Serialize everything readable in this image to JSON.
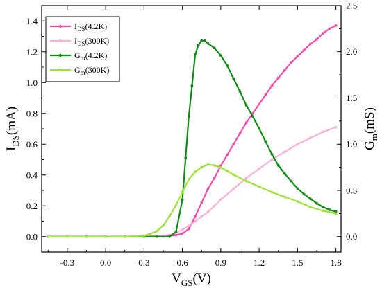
{
  "chart_data": {
    "type": "line",
    "xlabel": {
      "main": "V",
      "sub": "GS",
      "rest": "(V)"
    },
    "ylabel_left": {
      "main": "I",
      "sub": "DS",
      "rest": "(mA)"
    },
    "ylabel_right": {
      "main": "G",
      "sub": "m",
      "rest": "(mS)"
    },
    "xlim": [
      -0.5,
      1.84
    ],
    "ylim_left": [
      -0.1,
      1.5
    ],
    "ylim_right": [
      -0.1667,
      2.5
    ],
    "xticks": [
      -0.3,
      0.0,
      0.3,
      0.6,
      0.9,
      1.2,
      1.5,
      1.8
    ],
    "xtick_labels": [
      "-0.3",
      "0.0",
      "0.3",
      "0.6",
      "0.9",
      "1.2",
      "1.5",
      "1.8"
    ],
    "yticks_left": [
      0.0,
      0.2,
      0.4,
      0.6,
      0.8,
      1.0,
      1.2,
      1.4
    ],
    "ytick_labels_left": [
      "0.0",
      "0.2",
      "0.4",
      "0.6",
      "0.8",
      "1.0",
      "1.2",
      "1.4"
    ],
    "yticks_right": [
      0.0,
      0.5,
      1.0,
      1.5,
      2.0,
      2.5
    ],
    "ytick_labels_right": [
      "0.0",
      "0.5",
      "1.0",
      "1.5",
      "2.0",
      "2.5"
    ],
    "legend_position": "top-left",
    "grid": false,
    "series": [
      {
        "name": {
          "main": "I",
          "sub": "DS",
          "rest": "(4.2K)"
        },
        "axis": "left",
        "color": "#ee4fa8",
        "x": [
          -0.45,
          -0.3,
          -0.15,
          0.0,
          0.15,
          0.3,
          0.45,
          0.55,
          0.6,
          0.65,
          0.7,
          0.75,
          0.8,
          0.85,
          0.9,
          0.95,
          1.0,
          1.05,
          1.1,
          1.15,
          1.2,
          1.25,
          1.3,
          1.35,
          1.4,
          1.45,
          1.5,
          1.55,
          1.6,
          1.65,
          1.7,
          1.75,
          1.8
        ],
        "y": [
          0.0,
          0.0,
          0.0,
          0.0,
          0.0,
          0.0,
          0.0,
          0.01,
          0.02,
          0.05,
          0.13,
          0.22,
          0.31,
          0.38,
          0.46,
          0.53,
          0.6,
          0.67,
          0.74,
          0.8,
          0.86,
          0.92,
          0.98,
          1.03,
          1.08,
          1.13,
          1.17,
          1.21,
          1.25,
          1.28,
          1.32,
          1.35,
          1.37
        ]
      },
      {
        "name": {
          "main": "I",
          "sub": "DS",
          "rest": "(300K)"
        },
        "axis": "left",
        "color": "#f6b3d6",
        "x": [
          -0.45,
          -0.3,
          -0.15,
          0.0,
          0.15,
          0.3,
          0.4,
          0.5,
          0.55,
          0.6,
          0.65,
          0.7,
          0.75,
          0.8,
          0.85,
          0.9,
          1.0,
          1.1,
          1.2,
          1.3,
          1.4,
          1.5,
          1.6,
          1.7,
          1.8
        ],
        "y": [
          0.0,
          0.0,
          0.0,
          0.0,
          0.0,
          0.0,
          0.005,
          0.01,
          0.025,
          0.045,
          0.07,
          0.1,
          0.13,
          0.16,
          0.2,
          0.24,
          0.31,
          0.38,
          0.44,
          0.5,
          0.55,
          0.6,
          0.64,
          0.68,
          0.71
        ]
      },
      {
        "name": {
          "main": "G",
          "sub": "m",
          "rest": "(4.2K)"
        },
        "axis": "right",
        "color": "#14891a",
        "x": [
          -0.45,
          -0.3,
          -0.15,
          0.0,
          0.15,
          0.3,
          0.4,
          0.5,
          0.55,
          0.6,
          0.625,
          0.65,
          0.675,
          0.7,
          0.725,
          0.75,
          0.775,
          0.8,
          0.85,
          0.9,
          0.95,
          1.0,
          1.05,
          1.1,
          1.15,
          1.2,
          1.25,
          1.3,
          1.35,
          1.4,
          1.45,
          1.5,
          1.55,
          1.6,
          1.65,
          1.7,
          1.75,
          1.8
        ],
        "y": [
          0.0,
          0.0,
          0.0,
          0.0,
          0.0,
          0.0,
          0.0,
          0.0,
          0.05,
          0.4,
          0.85,
          1.3,
          1.63,
          1.97,
          2.07,
          2.12,
          2.12,
          2.09,
          2.04,
          1.96,
          1.85,
          1.71,
          1.57,
          1.42,
          1.3,
          1.17,
          1.03,
          0.89,
          0.77,
          0.68,
          0.6,
          0.52,
          0.46,
          0.41,
          0.36,
          0.32,
          0.29,
          0.27
        ]
      },
      {
        "name": {
          "main": "G",
          "sub": "m",
          "rest": "(300K)"
        },
        "axis": "right",
        "color": "#9fe03c",
        "x": [
          -0.45,
          -0.3,
          -0.15,
          0.0,
          0.15,
          0.3,
          0.35,
          0.4,
          0.45,
          0.5,
          0.55,
          0.6,
          0.65,
          0.7,
          0.75,
          0.8,
          0.85,
          0.9,
          0.95,
          1.0,
          1.1,
          1.2,
          1.3,
          1.4,
          1.5,
          1.6,
          1.7,
          1.8
        ],
        "y": [
          0.0,
          0.0,
          0.0,
          0.0,
          0.0,
          0.01,
          0.03,
          0.06,
          0.12,
          0.22,
          0.34,
          0.48,
          0.62,
          0.7,
          0.75,
          0.78,
          0.77,
          0.75,
          0.71,
          0.67,
          0.6,
          0.54,
          0.48,
          0.43,
          0.38,
          0.32,
          0.28,
          0.25
        ]
      }
    ]
  }
}
